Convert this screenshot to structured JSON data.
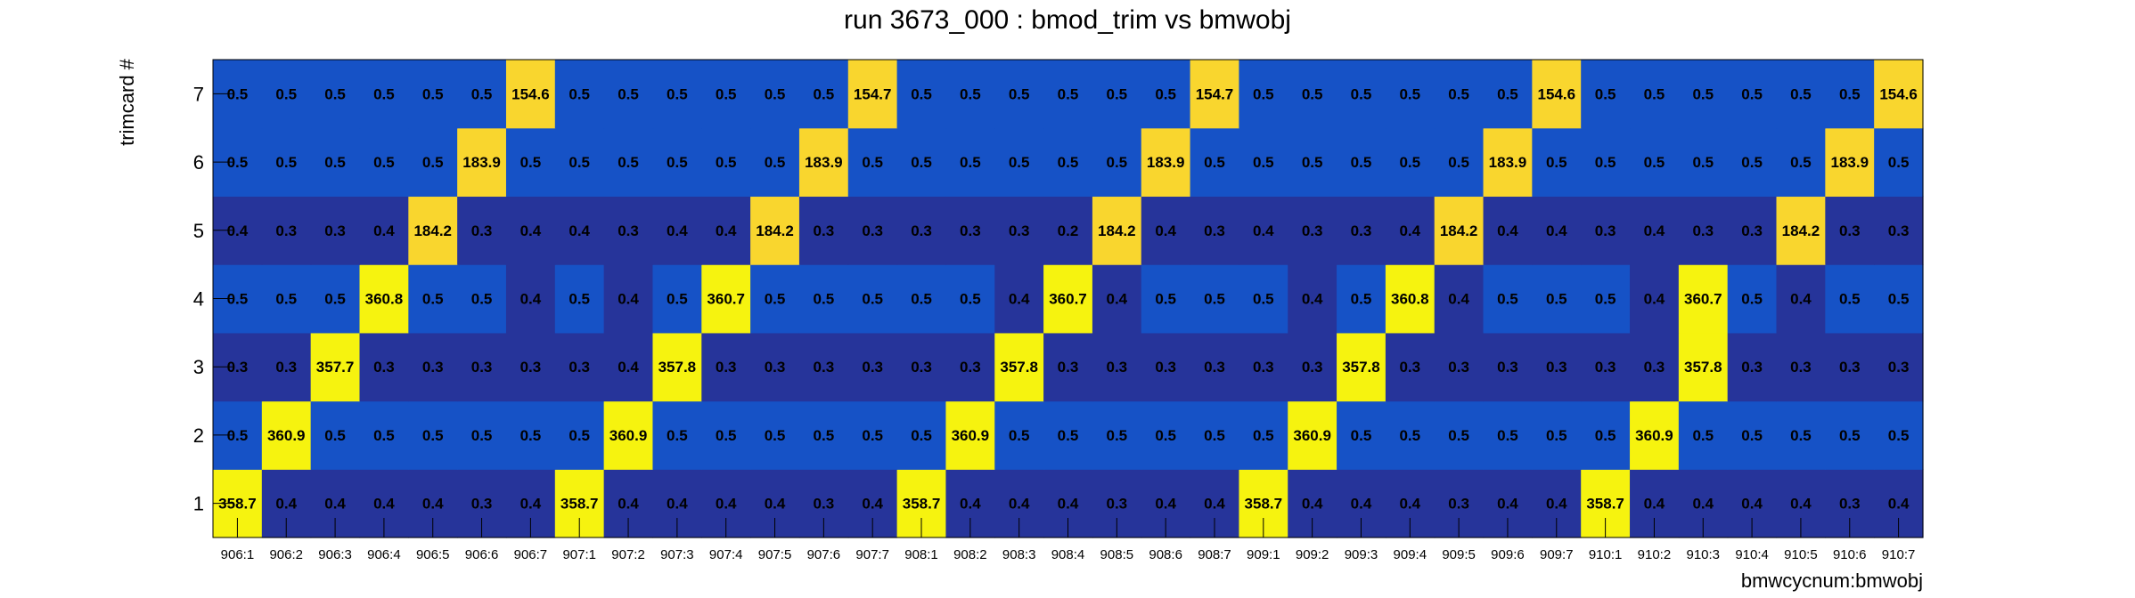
{
  "chart_data": {
    "type": "heatmap",
    "title": "run 3673_000 : bmod_trim vs bmwobj",
    "xlabel": "bmwcycnum:bmwobj",
    "ylabel": "trimcard #",
    "x_categories": [
      "906:1",
      "906:2",
      "906:3",
      "906:4",
      "906:5",
      "906:6",
      "906:7",
      "907:1",
      "907:2",
      "907:3",
      "907:4",
      "907:5",
      "907:6",
      "907:7",
      "908:1",
      "908:2",
      "908:3",
      "908:4",
      "908:5",
      "908:6",
      "908:7",
      "909:1",
      "909:2",
      "909:3",
      "909:4",
      "909:5",
      "909:6",
      "909:7",
      "910:1",
      "910:2",
      "910:3",
      "910:4",
      "910:5",
      "910:6",
      "910:7"
    ],
    "y_categories": [
      "1",
      "2",
      "3",
      "4",
      "5",
      "6",
      "7"
    ],
    "values": [
      [
        "358.7",
        "0.4",
        "0.4",
        "0.4",
        "0.4",
        "0.3",
        "0.4",
        "358.7",
        "0.4",
        "0.4",
        "0.4",
        "0.4",
        "0.3",
        "0.4",
        "358.7",
        "0.4",
        "0.4",
        "0.4",
        "0.3",
        "0.4",
        "0.4",
        "358.7",
        "0.4",
        "0.4",
        "0.4",
        "0.3",
        "0.4",
        "0.4",
        "358.7",
        "0.4",
        "0.4",
        "0.4",
        "0.4",
        "0.3",
        "0.4"
      ],
      [
        "0.5",
        "360.9",
        "0.5",
        "0.5",
        "0.5",
        "0.5",
        "0.5",
        "0.5",
        "360.9",
        "0.5",
        "0.5",
        "0.5",
        "0.5",
        "0.5",
        "0.5",
        "360.9",
        "0.5",
        "0.5",
        "0.5",
        "0.5",
        "0.5",
        "0.5",
        "360.9",
        "0.5",
        "0.5",
        "0.5",
        "0.5",
        "0.5",
        "0.5",
        "360.9",
        "0.5",
        "0.5",
        "0.5",
        "0.5",
        "0.5"
      ],
      [
        "0.3",
        "0.3",
        "357.7",
        "0.3",
        "0.3",
        "0.3",
        "0.3",
        "0.3",
        "0.4",
        "357.8",
        "0.3",
        "0.3",
        "0.3",
        "0.3",
        "0.3",
        "0.3",
        "357.8",
        "0.3",
        "0.3",
        "0.3",
        "0.3",
        "0.3",
        "0.3",
        "357.8",
        "0.3",
        "0.3",
        "0.3",
        "0.3",
        "0.3",
        "0.3",
        "357.8",
        "0.3",
        "0.3",
        "0.3",
        "0.3"
      ],
      [
        "0.5",
        "0.5",
        "0.5",
        "360.8",
        "0.5",
        "0.5",
        "0.4",
        "0.5",
        "0.4",
        "0.5",
        "360.7",
        "0.5",
        "0.5",
        "0.5",
        "0.5",
        "0.5",
        "0.4",
        "360.7",
        "0.4",
        "0.5",
        "0.5",
        "0.5",
        "0.4",
        "0.5",
        "360.8",
        "0.4",
        "0.5",
        "0.5",
        "0.5",
        "0.4",
        "360.7",
        "0.5",
        "0.4",
        "0.5",
        "0.5"
      ],
      [
        "0.4",
        "0.3",
        "0.3",
        "0.4",
        "184.2",
        "0.3",
        "0.4",
        "0.4",
        "0.3",
        "0.4",
        "0.4",
        "184.2",
        "0.3",
        "0.3",
        "0.3",
        "0.3",
        "0.3",
        "0.2",
        "184.2",
        "0.4",
        "0.3",
        "0.4",
        "0.3",
        "0.3",
        "0.4",
        "184.2",
        "0.4",
        "0.4",
        "0.3",
        "0.4",
        "0.3",
        "0.3",
        "184.2",
        "0.3",
        "0.3"
      ],
      [
        "0.5",
        "0.5",
        "0.5",
        "0.5",
        "0.5",
        "183.9",
        "0.5",
        "0.5",
        "0.5",
        "0.5",
        "0.5",
        "0.5",
        "183.9",
        "0.5",
        "0.5",
        "0.5",
        "0.5",
        "0.5",
        "0.5",
        "183.9",
        "0.5",
        "0.5",
        "0.5",
        "0.5",
        "0.5",
        "0.5",
        "183.9",
        "0.5",
        "0.5",
        "0.5",
        "0.5",
        "0.5",
        "0.5",
        "183.9",
        "0.5"
      ],
      [
        "0.5",
        "0.5",
        "0.5",
        "0.5",
        "0.5",
        "0.5",
        "154.6",
        "0.5",
        "0.5",
        "0.5",
        "0.5",
        "0.5",
        "0.5",
        "154.7",
        "0.5",
        "0.5",
        "0.5",
        "0.5",
        "0.5",
        "0.5",
        "154.7",
        "0.5",
        "0.5",
        "0.5",
        "0.5",
        "0.5",
        "0.5",
        "154.6",
        "0.5",
        "0.5",
        "0.5",
        "0.5",
        "0.5",
        "0.5",
        "154.6"
      ]
    ],
    "colors": {
      "very_low": "#26349a",
      "low": "#1652c6",
      "mid": "#f9d62e",
      "high": "#f6f30f"
    },
    "grid": false,
    "legend": "none"
  }
}
